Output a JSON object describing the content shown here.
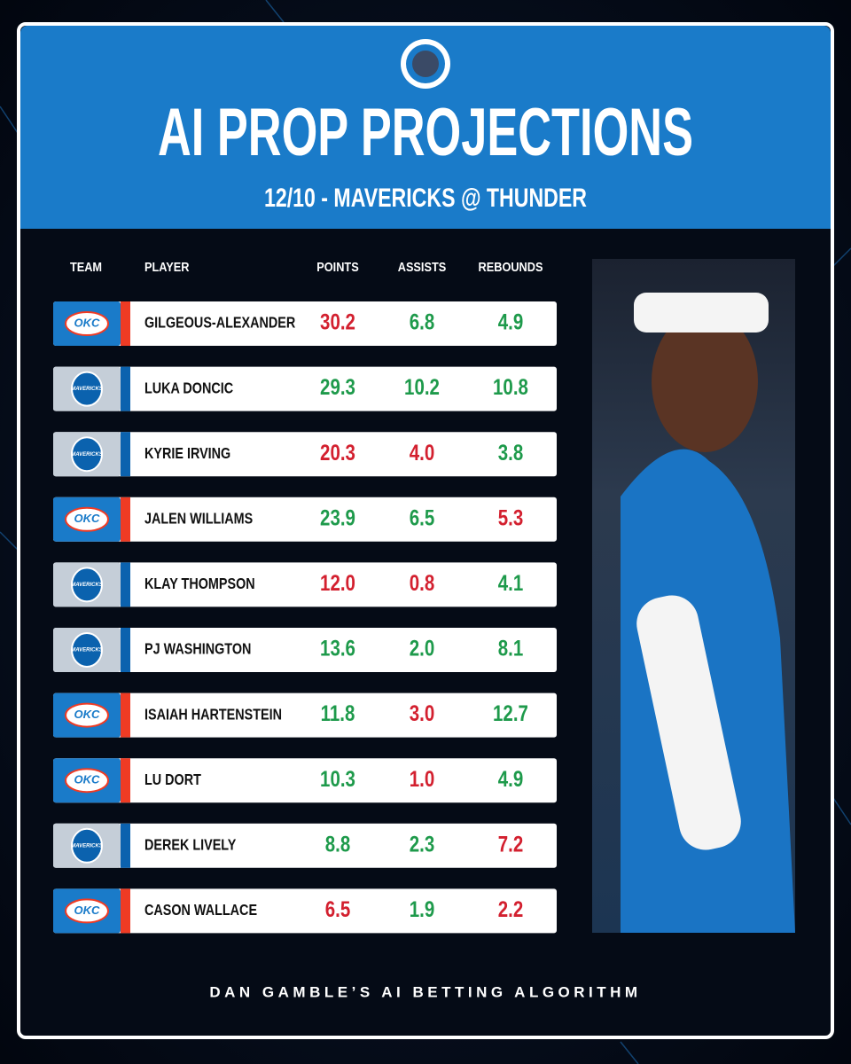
{
  "header": {
    "title": "AI PROP PROJECTIONS",
    "subtitle": "12/10 - MAVERICKS @ THUNDER"
  },
  "table": {
    "columns": [
      "TEAM",
      "PLAYER",
      "POINTS",
      "ASSISTS",
      "REBOUNDS"
    ],
    "rows": [
      {
        "team": "OKC",
        "player": "GILGEOUS-ALEXANDER",
        "points": "30.2",
        "assists": "6.8",
        "rebounds": "4.9",
        "colors": [
          "#d3202f",
          "#1e9a4b",
          "#1e9a4b"
        ]
      },
      {
        "team": "MAVERICKS",
        "player": "LUKA DONCIC",
        "points": "29.3",
        "assists": "10.2",
        "rebounds": "10.8",
        "colors": [
          "#1e9a4b",
          "#1e9a4b",
          "#1e9a4b"
        ]
      },
      {
        "team": "MAVERICKS",
        "player": "KYRIE IRVING",
        "points": "20.3",
        "assists": "4.0",
        "rebounds": "3.8",
        "colors": [
          "#d3202f",
          "#d3202f",
          "#1e9a4b"
        ]
      },
      {
        "team": "OKC",
        "player": "JALEN WILLIAMS",
        "points": "23.9",
        "assists": "6.5",
        "rebounds": "5.3",
        "colors": [
          "#1e9a4b",
          "#1e9a4b",
          "#d3202f"
        ]
      },
      {
        "team": "MAVERICKS",
        "player": "KLAY THOMPSON",
        "points": "12.0",
        "assists": "0.8",
        "rebounds": "4.1",
        "colors": [
          "#d3202f",
          "#d3202f",
          "#1e9a4b"
        ]
      },
      {
        "team": "MAVERICKS",
        "player": "PJ WASHINGTON",
        "points": "13.6",
        "assists": "2.0",
        "rebounds": "8.1",
        "colors": [
          "#1e9a4b",
          "#1e9a4b",
          "#1e9a4b"
        ]
      },
      {
        "team": "OKC",
        "player": "ISAIAH HARTENSTEIN",
        "points": "11.8",
        "assists": "3.0",
        "rebounds": "12.7",
        "colors": [
          "#1e9a4b",
          "#d3202f",
          "#1e9a4b"
        ]
      },
      {
        "team": "OKC",
        "player": "LU DORT",
        "points": "10.3",
        "assists": "1.0",
        "rebounds": "4.9",
        "colors": [
          "#1e9a4b",
          "#d3202f",
          "#1e9a4b"
        ]
      },
      {
        "team": "MAVERICKS",
        "player": "DEREK LIVELY",
        "points": "8.8",
        "assists": "2.3",
        "rebounds": "7.2",
        "colors": [
          "#1e9a4b",
          "#1e9a4b",
          "#d3202f"
        ]
      },
      {
        "team": "OKC",
        "player": "CASON WALLACE",
        "points": "6.5",
        "assists": "1.9",
        "rebounds": "2.2",
        "colors": [
          "#d3202f",
          "#1e9a4b",
          "#d3202f"
        ]
      }
    ]
  },
  "footer": "DAN GAMBLE’S AI BETTING ALGORITHM"
}
